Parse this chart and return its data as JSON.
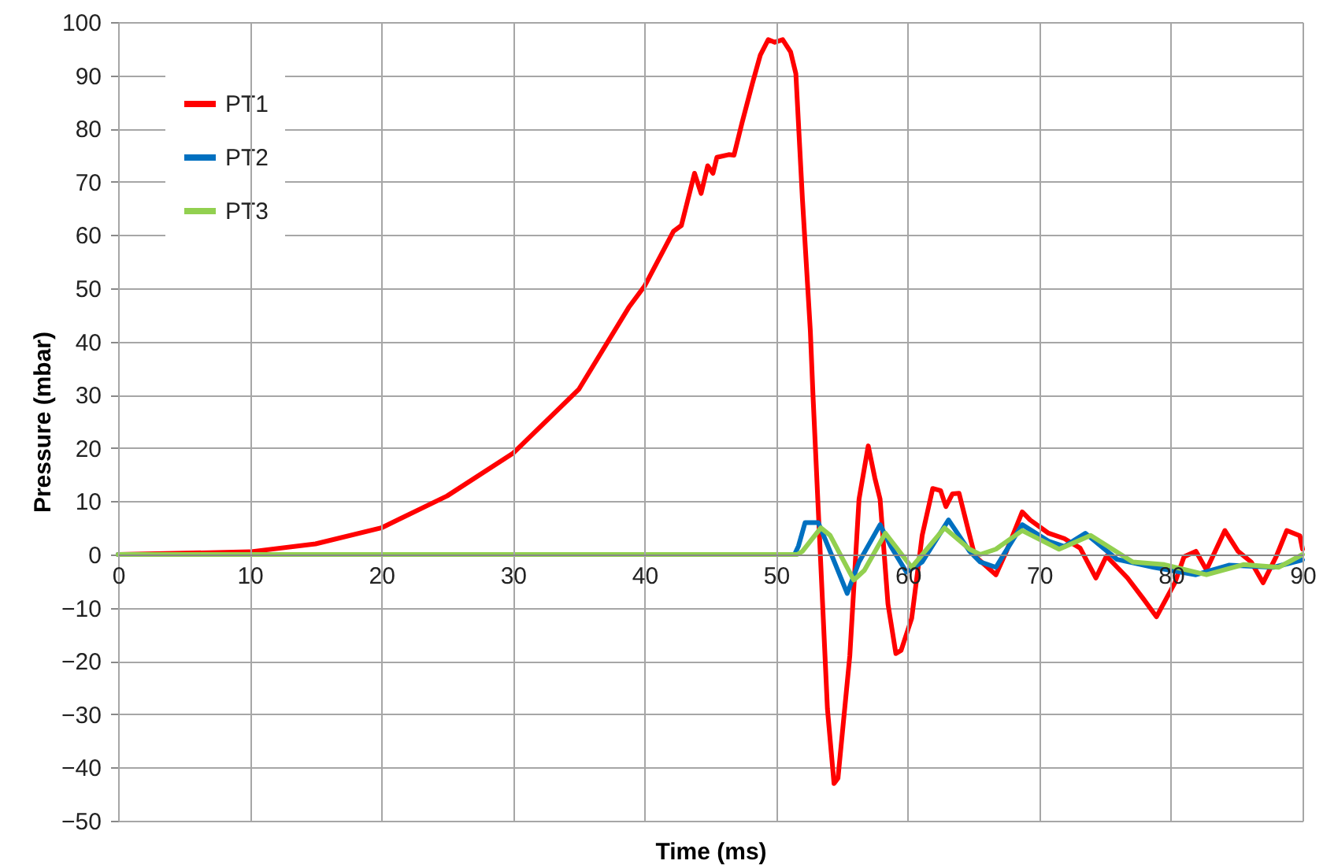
{
  "chart_data": {
    "type": "line",
    "xlabel": "Time (ms)",
    "ylabel": "Pressure (mbar)",
    "xlim": [
      0,
      90
    ],
    "ylim": [
      -50,
      100
    ],
    "xticks": [
      0,
      10,
      20,
      30,
      40,
      50,
      60,
      70,
      80,
      90
    ],
    "yticks": [
      -50,
      -40,
      -30,
      -20,
      -10,
      0,
      10,
      20,
      30,
      40,
      50,
      60,
      70,
      80,
      90,
      100
    ],
    "grid": true,
    "legend": "top left",
    "marker": "none",
    "line_style": "solid",
    "series": [
      {
        "name": "PT1",
        "color": "#ff0000",
        "x": [
          0,
          10,
          15,
          20,
          25,
          30,
          35,
          38.8,
          40,
          42.2,
          42.8,
          43.8,
          44.3,
          44.8,
          45.2,
          45.5,
          46.4,
          46.8,
          47.4,
          48.2,
          48.8,
          49.4,
          49.9,
          50.5,
          51.1,
          51.5,
          52,
          52.6,
          52.8,
          53.9,
          54.4,
          54.7,
          55.6,
          56.3,
          57,
          57.5,
          57.9,
          58.5,
          59.1,
          59.5,
          60.3,
          61.1,
          61.9,
          62.5,
          62.9,
          63.4,
          63.9,
          64.5,
          65.1,
          66.7,
          67.5,
          68.7,
          69.3,
          70.7,
          71.9,
          73.1,
          74.3,
          75.1,
          76.7,
          77.9,
          78.9,
          80.3,
          81,
          81.9,
          82.7,
          84.1,
          85.1,
          86.1,
          87,
          88,
          88.8,
          89.8,
          90
        ],
        "values": [
          0,
          0.5,
          2,
          5,
          11,
          19,
          31,
          46.4,
          50.4,
          60.7,
          61.8,
          71.6,
          67.8,
          73,
          71.6,
          74.6,
          75.1,
          75,
          81,
          88.5,
          93.8,
          96.7,
          96.2,
          96.7,
          94.4,
          90.3,
          66.7,
          42,
          30,
          -29,
          -43,
          -42,
          -19,
          10.4,
          20.4,
          14.4,
          10.4,
          -9.3,
          -18.6,
          -18,
          -12,
          3.6,
          12.4,
          12,
          9,
          11.4,
          11.5,
          5.6,
          -0.3,
          -3.8,
          0.6,
          8,
          6.5,
          4,
          3,
          1.2,
          -4.4,
          -0.3,
          -4.4,
          -8.3,
          -11.7,
          -5.3,
          -0.4,
          0.6,
          -2.9,
          4.5,
          0.6,
          -1.4,
          -5.3,
          -0.4,
          4.5,
          3.5,
          1
        ]
      },
      {
        "name": "PT2",
        "color": "#0070c0",
        "x": [
          0,
          51.4,
          51.7,
          52.2,
          53.2,
          54.1,
          55.4,
          56.3,
          57.9,
          58.7,
          59.9,
          61.1,
          63.1,
          64.7,
          65.5,
          66.7,
          68.7,
          70.7,
          71.9,
          73.5,
          75.9,
          78.7,
          81.9,
          84.4,
          87.8,
          90
        ],
        "values": [
          0,
          0,
          1.6,
          6,
          6,
          0.6,
          -7.3,
          -1.4,
          5.6,
          1.6,
          -3.3,
          -1.4,
          6.5,
          0.6,
          -1.4,
          -2.4,
          5.6,
          2.5,
          1.5,
          4,
          -0.9,
          -2.4,
          -3.8,
          -2,
          -2.4,
          -1
        ]
      },
      {
        "name": "PT3",
        "color": "#92d050",
        "x": [
          0,
          51.6,
          52,
          53.4,
          54.1,
          55.9,
          56.7,
          58.3,
          60.3,
          62.8,
          64.7,
          65.5,
          66.7,
          68.7,
          71.5,
          73.9,
          77.1,
          79.5,
          82.7,
          85.5,
          88.2,
          90
        ],
        "values": [
          0,
          0,
          0.6,
          5,
          3.6,
          -4.8,
          -3,
          4,
          -2.4,
          5,
          1,
          0,
          1,
          4.5,
          1,
          3.6,
          -1.4,
          -1.9,
          -3.8,
          -1.9,
          -2.4,
          0
        ]
      }
    ]
  }
}
